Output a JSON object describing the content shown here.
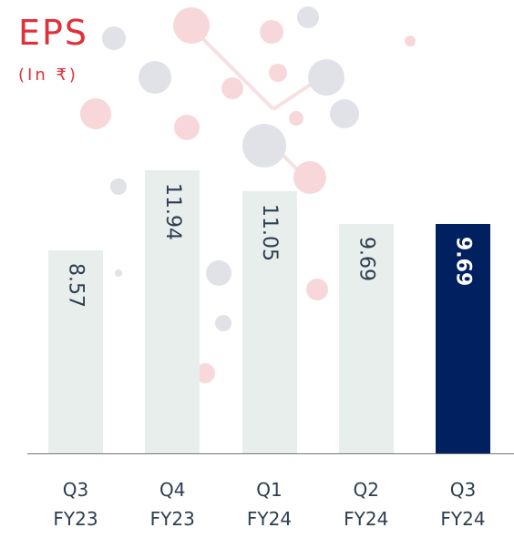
{
  "chart_data": {
    "type": "bar",
    "title": "EPS",
    "subtitle": "(In ₹)",
    "categories": [
      "Q3 FY23",
      "Q4 FY23",
      "Q1 FY24",
      "Q2 FY24",
      "Q3 FY24"
    ],
    "values": [
      8.57,
      11.94,
      11.05,
      9.69,
      9.69
    ],
    "color": "#e8eeec",
    "highlight_color": "#002060",
    "highlight_index": 4
  }
}
